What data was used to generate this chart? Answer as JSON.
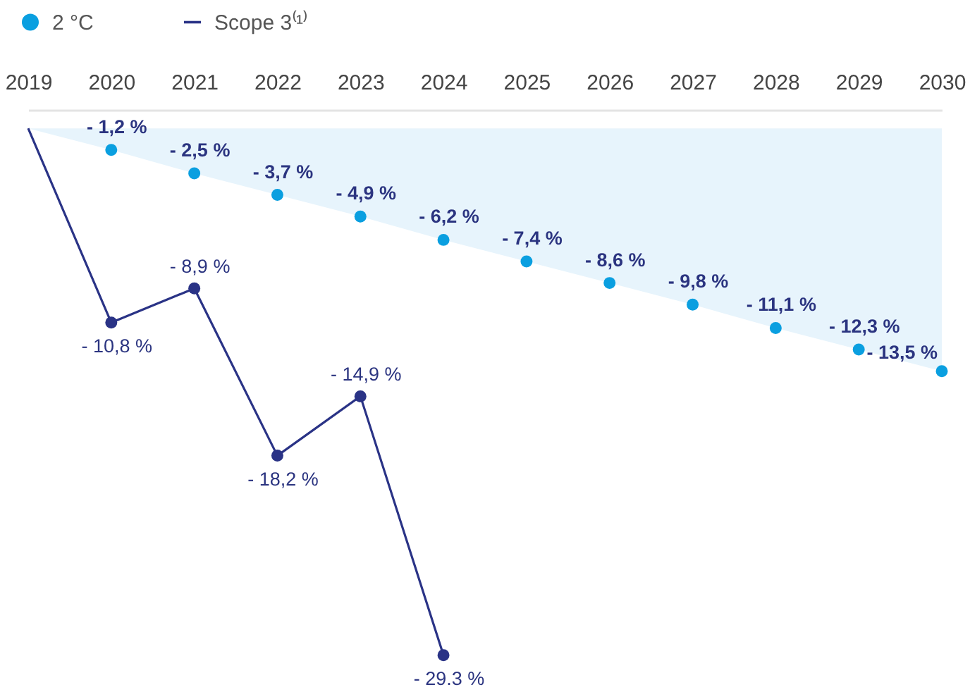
{
  "chart_data": {
    "type": "line",
    "categories": [
      "2019",
      "2020",
      "2021",
      "2022",
      "2023",
      "2024",
      "2025",
      "2026",
      "2027",
      "2028",
      "2029",
      "2030"
    ],
    "legend": "top left",
    "series": [
      {
        "type": "area",
        "color": "#e7f4fc",
        "values": [
          0,
          -1.2,
          -2.5,
          -3.7,
          -4.9,
          -6.2,
          -7.4,
          -8.6,
          -9.8,
          -11.1,
          -12.3,
          -13.5
        ]
      },
      {
        "type": "scatter",
        "name": "2 °C",
        "color": "#0a9fe0",
        "marker": "circle",
        "values": [
          null,
          -1.2,
          -2.5,
          -3.7,
          -4.9,
          -6.2,
          -7.4,
          -8.6,
          -9.8,
          -11.1,
          -12.3,
          -13.5
        ],
        "value_labels": [
          null,
          "- 1,2 %",
          "- 2,5 %",
          "- 3,7 %",
          "- 4,9 %",
          "- 6,2 %",
          "- 7,4 %",
          "- 8,6 %",
          "- 9,8 %",
          "- 11,1 %",
          "- 12,3 %",
          "- 13,5 %"
        ]
      },
      {
        "name": "Scope 3⁽¹⁾",
        "color": "#2a3386",
        "marker": "circle",
        "values": [
          0,
          -10.8,
          -8.9,
          -18.2,
          -14.9,
          -29.3,
          null,
          null,
          null,
          null,
          null,
          null
        ],
        "value_labels": [
          null,
          "- 10,8 %",
          "- 8,9 %",
          "- 18,2 %",
          "- 14,9 %",
          "- 29.3 %",
          null,
          null,
          null,
          null,
          null,
          null
        ]
      }
    ]
  }
}
